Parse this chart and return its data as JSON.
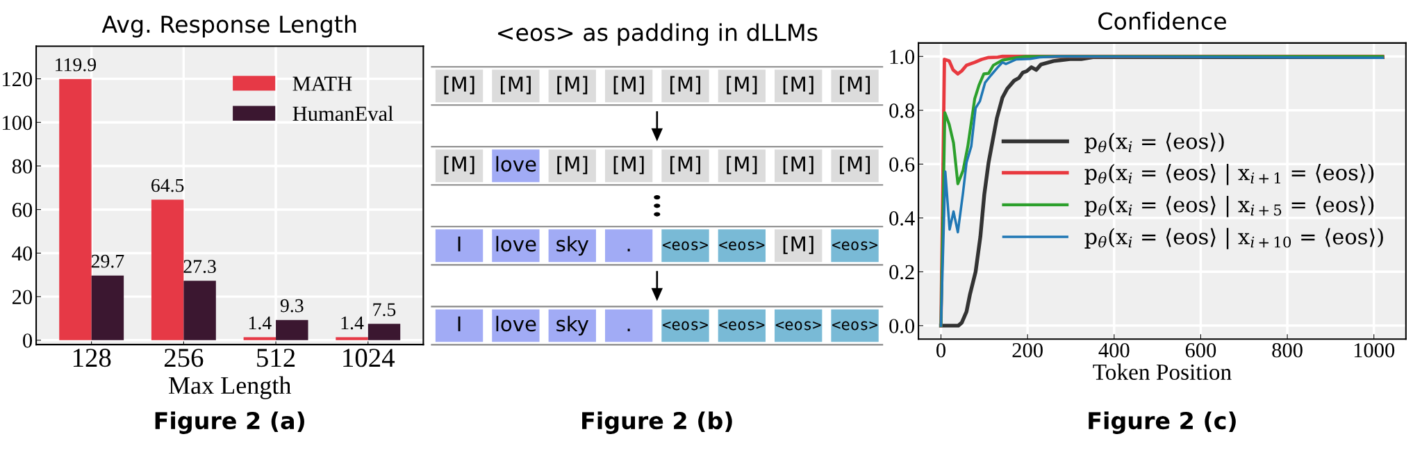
{
  "chart_data": [
    {
      "type": "bar",
      "title": "Avg. Response Length",
      "xlabel": "Max Length",
      "categories": [
        "128",
        "256",
        "512",
        "1024"
      ],
      "series": [
        {
          "name": "MATH",
          "color": "#e63946",
          "values": [
            119.9,
            64.5,
            1.4,
            1.4
          ]
        },
        {
          "name": "HumanEval",
          "color": "#3b1730",
          "values": [
            29.7,
            27.3,
            9.3,
            7.5
          ]
        }
      ],
      "ylim": [
        -2,
        135
      ],
      "yticks": [
        0,
        20,
        40,
        60,
        80,
        100,
        120
      ],
      "grid": true,
      "legend": "top right",
      "data_labels": true,
      "annotations": [
        "Figure 2 (a)"
      ]
    },
    {
      "type": "other",
      "title": "<eos> as padding in dLLMs",
      "annotations": [
        "[M]",
        "[M]",
        "[M]",
        "[M]",
        "[M]",
        "[M]",
        "[M]",
        "[M]",
        "[M]",
        "love",
        "[M]",
        "[M]",
        "[M]",
        "[M]",
        "[M]",
        "[M]",
        "I",
        "love",
        "sky",
        ".",
        "<eos>",
        "<eos>",
        "[M]",
        "<eos>",
        "I",
        "love",
        "sky",
        ".",
        "<eos>",
        "<eos>",
        "<eos>",
        "<eos>",
        "Figure 2 (b)"
      ],
      "colors": [
        "#dcdcdc",
        "#dcdcdc",
        "#dcdcdc",
        "#dcdcdc",
        "#dcdcdc",
        "#dcdcdc",
        "#dcdcdc",
        "#dcdcdc",
        "#dcdcdc",
        "#a1abf5",
        "#dcdcdc",
        "#dcdcdc",
        "#dcdcdc",
        "#dcdcdc",
        "#dcdcdc",
        "#dcdcdc",
        "#a1abf5",
        "#a1abf5",
        "#a1abf5",
        "#a1abf5",
        "#79bad6",
        "#79bad6",
        "#dcdcdc",
        "#79bad6",
        "#a1abf5",
        "#a1abf5",
        "#a1abf5",
        "#a1abf5",
        "#79bad6",
        "#79bad6",
        "#79bad6",
        "#79bad6"
      ]
    },
    {
      "type": "line",
      "title": "Confidence",
      "xlabel": "Token Position",
      "series": [
        {
          "name": "p$_{θ}$(x$_{i}$ = ⟨eos⟩)",
          "color": "#333333",
          "x": [
            0,
            40,
            48,
            59,
            67,
            80,
            91,
            100,
            110,
            129,
            142,
            153,
            169,
            180,
            189,
            198,
            209,
            220,
            231,
            260,
            298,
            324,
            351,
            1020
          ],
          "values": [
            0,
            0,
            0.011,
            0.052,
            0.116,
            0.2,
            0.33,
            0.486,
            0.606,
            0.77,
            0.847,
            0.88,
            0.91,
            0.92,
            0.94,
            0.945,
            0.96,
            0.95,
            0.97,
            0.983,
            0.99,
            0.99,
            0.997,
            0.997
          ]
        },
        {
          "name": "p$_{θ}$(x$_{i}$ = ⟨eos⟩ | x$_{i+1}$ = ⟨eos⟩)",
          "color": "#e8393f",
          "x": [
            0,
            8,
            19,
            28,
            39,
            48,
            59,
            78,
            94,
            110,
            131,
            142,
            1020
          ],
          "values": [
            0,
            0.989,
            0.983,
            0.95,
            0.935,
            0.946,
            0.967,
            0.978,
            0.989,
            0.996,
            0.997,
            1.0,
            1.0
          ]
        },
        {
          "name": "p$_{θ}$(x$_{i}$ = ⟨eos⟩ | x$_{i+5}$ = ⟨eos⟩)",
          "color": "#2ca02c",
          "x": [
            0,
            9,
            19,
            29,
            39,
            51,
            62,
            78,
            88,
            99,
            110,
            121,
            142,
            174,
            196,
            1020
          ],
          "values": [
            0,
            0.791,
            0.748,
            0.679,
            0.527,
            0.576,
            0.666,
            0.843,
            0.894,
            0.935,
            0.937,
            0.967,
            0.986,
            0.995,
            1.0,
            1.0
          ]
        },
        {
          "name": "p$_{θ}$(x$_{i}$ = ⟨eos⟩ | x$_{i+10}$ = ⟨eos⟩)",
          "color": "#1f77b4",
          "x": [
            0,
            10,
            20,
            29,
            39,
            51,
            59,
            70,
            80,
            90,
            102,
            115,
            131,
            142,
            150,
            174,
            206,
            228,
            271,
            1020
          ],
          "values": [
            0,
            0.572,
            0.357,
            0.424,
            0.347,
            0.494,
            0.606,
            0.666,
            0.808,
            0.834,
            0.903,
            0.929,
            0.959,
            0.978,
            0.972,
            0.989,
            0.991,
            0.997,
            1.0,
            0.995
          ]
        }
      ],
      "xlim": [
        -52,
        1074
      ],
      "xticks": [
        0,
        200,
        400,
        600,
        800,
        1000
      ],
      "ylim": [
        -0.05,
        1.05
      ],
      "yticks": [
        {
          "value": 0,
          "label": "0.0"
        },
        0.2,
        0.4,
        0.6,
        0.8,
        {
          "value": 1,
          "label": "1.0"
        }
      ],
      "grid": true,
      "legend": "center right",
      "marker": "none",
      "line_style": "solid",
      "annotations": [
        "Figure 2 (c)"
      ]
    }
  ]
}
